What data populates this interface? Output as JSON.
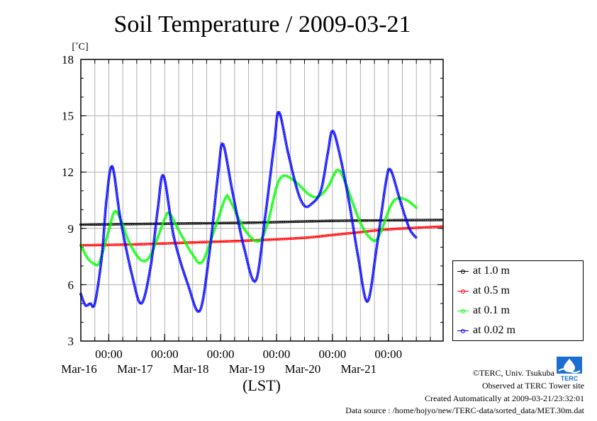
{
  "chart_data": {
    "type": "line",
    "title": "Soil Temperature / 2009-03-21",
    "ylabel": "[˚C]",
    "xlabel": "(LST)",
    "ylim": [
      3,
      18
    ],
    "yticks": [
      3,
      6,
      9,
      12,
      15,
      18
    ],
    "xlim": [
      "2009-03-15 12:00",
      "2009-03-21 23:30"
    ],
    "xtick_labels": [
      {
        "time": "00:00",
        "date": "Mar-16"
      },
      {
        "time": "00:00",
        "date": "Mar-17"
      },
      {
        "time": "00:00",
        "date": "Mar-18"
      },
      {
        "time": "00:00",
        "date": "Mar-19"
      },
      {
        "time": "00:00",
        "date": "Mar-20"
      },
      {
        "time": "00:00",
        "date": "Mar-21"
      }
    ],
    "grid": true,
    "legend_position": "bottom-right outside plot",
    "series": [
      {
        "name": "at 1.0 m",
        "color": "#000000",
        "points": [
          [
            "2009-03-15 12:00",
            9.2
          ],
          [
            "2009-03-17 00:00",
            9.25
          ],
          [
            "2009-03-18 12:00",
            9.3
          ],
          [
            "2009-03-20 00:00",
            9.4
          ],
          [
            "2009-03-21 23:30",
            9.45
          ]
        ]
      },
      {
        "name": "at 0.5 m",
        "color": "#ff0000",
        "points": [
          [
            "2009-03-15 12:00",
            8.1
          ],
          [
            "2009-03-16 12:00",
            8.15
          ],
          [
            "2009-03-17 12:00",
            8.25
          ],
          [
            "2009-03-18 12:00",
            8.35
          ],
          [
            "2009-03-19 12:00",
            8.5
          ],
          [
            "2009-03-20 00:00",
            8.65
          ],
          [
            "2009-03-20 12:00",
            8.8
          ],
          [
            "2009-03-21 00:00",
            8.95
          ],
          [
            "2009-03-21 23:30",
            9.1
          ]
        ]
      },
      {
        "name": "at 0.1 m",
        "color": "#00ff00",
        "points": [
          [
            "2009-03-15 12:00",
            8.1
          ],
          [
            "2009-03-15 15:00",
            7.4
          ],
          [
            "2009-03-15 18:00",
            7.1
          ],
          [
            "2009-03-15 20:00",
            7.2
          ],
          [
            "2009-03-16 00:00",
            8.9
          ],
          [
            "2009-03-16 02:30",
            9.9
          ],
          [
            "2009-03-16 05:00",
            9.5
          ],
          [
            "2009-03-16 09:00",
            8.2
          ],
          [
            "2009-03-16 14:00",
            7.3
          ],
          [
            "2009-03-16 18:00",
            7.6
          ],
          [
            "2009-03-17 00:00",
            9.5
          ],
          [
            "2009-03-17 02:00",
            9.8
          ],
          [
            "2009-03-17 06:00",
            8.9
          ],
          [
            "2009-03-17 12:00",
            7.6
          ],
          [
            "2009-03-17 16:00",
            7.2
          ],
          [
            "2009-03-17 21:00",
            8.8
          ],
          [
            "2009-03-18 02:00",
            10.6
          ],
          [
            "2009-03-18 04:00",
            10.5
          ],
          [
            "2009-03-18 10:00",
            9.0
          ],
          [
            "2009-03-18 16:00",
            8.3
          ],
          [
            "2009-03-18 20:00",
            9.2
          ],
          [
            "2009-03-19 00:00",
            11.2
          ],
          [
            "2009-03-19 03:00",
            11.8
          ],
          [
            "2009-03-19 08:00",
            11.5
          ],
          [
            "2009-03-19 14:00",
            10.8
          ],
          [
            "2009-03-19 18:00",
            10.7
          ],
          [
            "2009-03-19 22:00",
            11.2
          ],
          [
            "2009-03-20 02:00",
            12.1
          ],
          [
            "2009-03-20 05:00",
            11.6
          ],
          [
            "2009-03-20 12:00",
            9.3
          ],
          [
            "2009-03-20 17:00",
            8.4
          ],
          [
            "2009-03-20 20:00",
            8.6
          ],
          [
            "2009-03-21 01:00",
            10.2
          ],
          [
            "2009-03-21 04:00",
            10.6
          ],
          [
            "2009-03-21 08:00",
            10.5
          ],
          [
            "2009-03-21 12:00",
            10.1
          ]
        ]
      },
      {
        "name": "at 0.02 m",
        "color": "#0000ff",
        "points": [
          [
            "2009-03-15 12:00",
            5.5
          ],
          [
            "2009-03-15 14:00",
            4.9
          ],
          [
            "2009-03-15 16:00",
            5.0
          ],
          [
            "2009-03-15 18:00",
            5.0
          ],
          [
            "2009-03-15 21:00",
            7.5
          ],
          [
            "2009-03-15 23:00",
            10.5
          ],
          [
            "2009-03-16 01:30",
            12.3
          ],
          [
            "2009-03-16 05:00",
            9.5
          ],
          [
            "2009-03-16 10:00",
            6.5
          ],
          [
            "2009-03-16 14:00",
            5.0
          ],
          [
            "2009-03-16 18:00",
            7.0
          ],
          [
            "2009-03-16 21:00",
            10.0
          ],
          [
            "2009-03-16 23:30",
            11.8
          ],
          [
            "2009-03-17 04:00",
            8.5
          ],
          [
            "2009-03-17 10:00",
            6.0
          ],
          [
            "2009-03-17 15:00",
            4.6
          ],
          [
            "2009-03-17 19:00",
            7.5
          ],
          [
            "2009-03-17 23:00",
            12.0
          ],
          [
            "2009-03-18 01:00",
            13.5
          ],
          [
            "2009-03-18 05:00",
            11.0
          ],
          [
            "2009-03-18 10:00",
            8.0
          ],
          [
            "2009-03-18 15:00",
            6.2
          ],
          [
            "2009-03-18 19:00",
            9.5
          ],
          [
            "2009-03-18 23:00",
            13.5
          ],
          [
            "2009-03-19 01:00",
            15.2
          ],
          [
            "2009-03-19 05:00",
            13.0
          ],
          [
            "2009-03-19 09:00",
            11.0
          ],
          [
            "2009-03-19 12:00",
            10.2
          ],
          [
            "2009-03-19 15:00",
            10.3
          ],
          [
            "2009-03-19 19:00",
            11.0
          ],
          [
            "2009-03-19 22:00",
            13.0
          ],
          [
            "2009-03-20 00:00",
            14.2
          ],
          [
            "2009-03-20 03:00",
            13.0
          ],
          [
            "2009-03-20 07:00",
            10.5
          ],
          [
            "2009-03-20 11:00",
            7.5
          ],
          [
            "2009-03-20 15:00",
            5.1
          ],
          [
            "2009-03-20 19:00",
            8.0
          ],
          [
            "2009-03-20 23:00",
            11.5
          ],
          [
            "2009-03-21 01:00",
            12.1
          ],
          [
            "2009-03-21 05:00",
            10.5
          ],
          [
            "2009-03-21 09:00",
            9.0
          ],
          [
            "2009-03-21 12:00",
            8.5
          ]
        ]
      }
    ]
  },
  "credits": {
    "copyright": "©TERC, Univ. Tsukuba",
    "site": "Observed at TERC Tower site",
    "created": "Created Automatically at 2009-03-21/23:32:01",
    "source": "Data source : /home/hojyo/new/TERC-data/sorted_data/MET.30m.dat"
  },
  "logo": {
    "text": "TERC",
    "color": "#1c6fd1",
    "icon": "terc-logo-icon"
  }
}
